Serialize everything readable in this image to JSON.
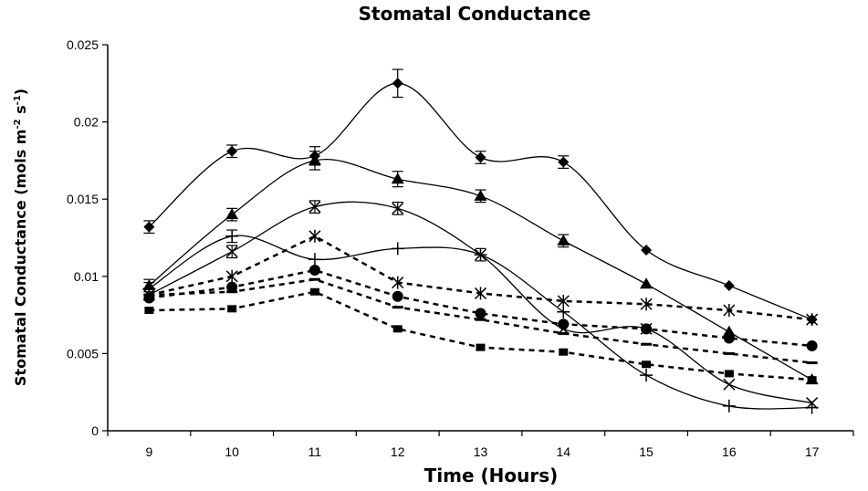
{
  "chart_data": {
    "type": "line",
    "title": "Stomatal Conductance",
    "xlabel": "Time (Hours)",
    "ylabel_main": "Stomatal Conductance (mols m",
    "ylabel_sup1": "-2",
    "ylabel_mid": " s",
    "ylabel_sup2": "-1",
    "ylabel_end": ")",
    "x": [
      9,
      10,
      11,
      12,
      13,
      14,
      15,
      16,
      17
    ],
    "xlim": [
      8.5,
      17.5
    ],
    "ylim": [
      0,
      0.025
    ],
    "yticks": [
      0,
      0.005,
      0.01,
      0.015,
      0.02,
      0.025
    ],
    "ytick_labels": [
      "0",
      "0.005",
      "0.01",
      "0.015",
      "0.02",
      "0.025"
    ],
    "grid": false,
    "series": [
      {
        "marker": "diamond",
        "style": "solid",
        "values": [
          0.0132,
          0.0181,
          0.0178,
          0.0225,
          0.0177,
          0.0174,
          0.0117,
          0.0094,
          0.0072
        ],
        "errors": [
          0.0004,
          0.0004,
          0.0006,
          0.0009,
          0.0004,
          0.0004,
          0,
          0,
          0
        ]
      },
      {
        "marker": "triangle",
        "style": "solid",
        "values": [
          0.0094,
          0.014,
          0.0175,
          0.0163,
          0.0152,
          0.0123,
          0.0095,
          0.0064,
          0.0033
        ],
        "errors": [
          0.0004,
          0.0004,
          0.0006,
          0.0005,
          0.0004,
          0.0004,
          0,
          0,
          0
        ]
      },
      {
        "marker": "x",
        "style": "solid",
        "values": [
          0.0088,
          0.0116,
          0.0145,
          0.0144,
          0.0114,
          0.0066,
          0.0066,
          0.003,
          0.0018
        ],
        "errors": [
          0,
          0.0004,
          0.0004,
          0.0004,
          0.0004,
          0,
          0,
          0,
          0
        ]
      },
      {
        "marker": "plus",
        "style": "solid",
        "values": [
          0.0092,
          0.0126,
          0.0111,
          0.0118,
          0.0114,
          0.0077,
          0.0036,
          0.0016,
          0.0015
        ],
        "errors": [
          0.0004,
          0.0004,
          0,
          0,
          0,
          0,
          0,
          0,
          0
        ]
      },
      {
        "marker": "star",
        "style": "dashed",
        "values": [
          0.0088,
          0.01,
          0.0126,
          0.0096,
          0.0089,
          0.0084,
          0.0082,
          0.0078,
          0.0072
        ],
        "errors": [
          0,
          0,
          0,
          0,
          0,
          0,
          0,
          0,
          0
        ]
      },
      {
        "marker": "circle",
        "style": "dashed",
        "values": [
          0.0086,
          0.0093,
          0.0104,
          0.0087,
          0.0076,
          0.0069,
          0.0066,
          0.006,
          0.0055
        ],
        "errors": [
          0,
          0,
          0,
          0,
          0,
          0,
          0,
          0,
          0
        ]
      },
      {
        "marker": "dash",
        "style": "dashed",
        "values": [
          0.0088,
          0.009,
          0.0098,
          0.008,
          0.0072,
          0.0063,
          0.0056,
          0.005,
          0.0044
        ],
        "errors": [
          0,
          0,
          0,
          0,
          0,
          0,
          0,
          0,
          0
        ]
      },
      {
        "marker": "square",
        "style": "dashed",
        "values": [
          0.0078,
          0.0079,
          0.009,
          0.0066,
          0.0054,
          0.0051,
          0.0043,
          0.0037,
          0.0033
        ],
        "errors": [
          0,
          0,
          0,
          0,
          0,
          0,
          0,
          0,
          0
        ]
      }
    ]
  }
}
